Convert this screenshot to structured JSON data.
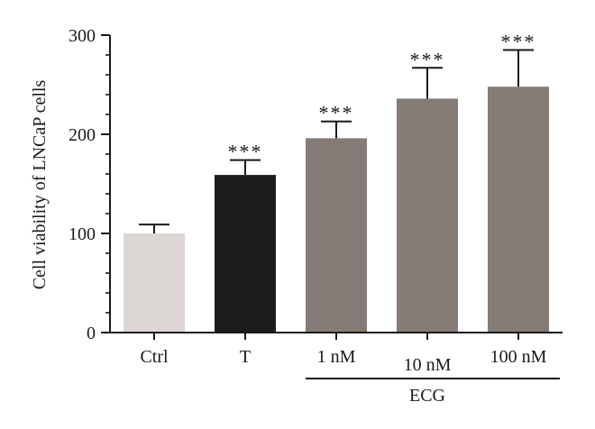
{
  "chart_data": {
    "type": "bar",
    "title": "",
    "ylabel": "Cell viability of LNCaP cells",
    "xlabel": "",
    "ylim": [
      0,
      300
    ],
    "yticks": [
      "0",
      "100",
      "200",
      "300"
    ],
    "y_minor_step": 20,
    "categories": [
      "Ctrl",
      "T",
      "1 nM",
      "10 nM",
      "100 nM"
    ],
    "values": [
      100,
      159,
      196,
      236,
      248
    ],
    "errors": [
      9,
      15,
      17,
      31,
      37
    ],
    "significance": [
      "",
      "***",
      "***",
      "***",
      "***"
    ],
    "bar_colors": [
      "#dcd6d5",
      "#1d1d1b",
      "#857b77",
      "#857b77",
      "#857b77"
    ],
    "group_bracket": {
      "label": "ECG",
      "from_index": 2,
      "to_index": 4
    },
    "grid": false
  }
}
